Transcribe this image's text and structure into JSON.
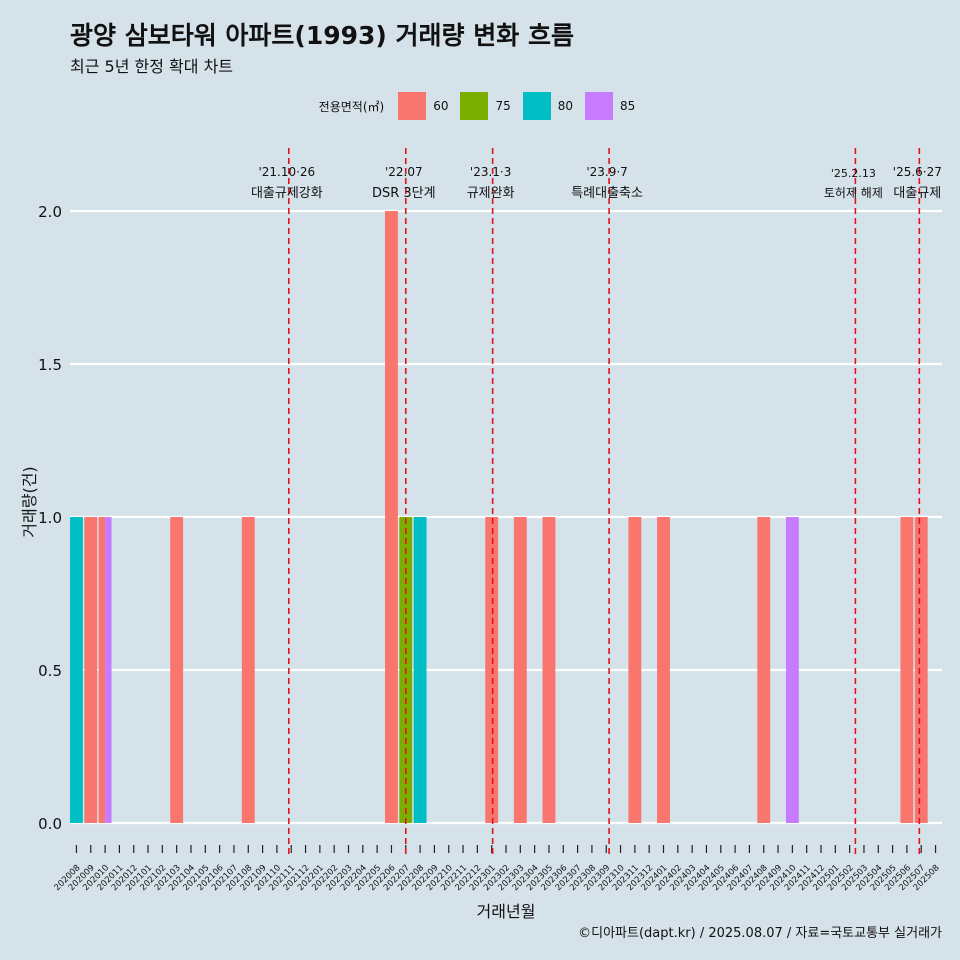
{
  "title": "광양 삼보타워 아파트(1993) 거래량 변화 흐름",
  "subtitle": "최근 5년 한정 확대 차트",
  "caption": "©디아파트(dapt.kr) / 2025.08.07 / 자료=국토교통부 실거래가",
  "legend": {
    "title": "전용면적(㎡)",
    "items": [
      {
        "label": "60",
        "color": "#f8766d"
      },
      {
        "label": "75",
        "color": "#7cae00"
      },
      {
        "label": "80",
        "color": "#00bfc4"
      },
      {
        "label": "85",
        "color": "#c77cff"
      }
    ]
  },
  "chart_data": {
    "type": "bar",
    "title": "광양 삼보타워 아파트(1993) 거래량 변화 흐름",
    "subtitle": "최근 5년 한정 확대 차트",
    "xlabel": "거래년월",
    "ylabel": "거래량(건)",
    "ylim": [
      0,
      2.2
    ],
    "yticks": [
      0.0,
      0.5,
      1.0,
      1.5,
      2.0
    ],
    "ytick_labels": [
      "0.0",
      "0.5",
      "1.0",
      "1.5",
      "2.0"
    ],
    "grid": true,
    "legend_position": "top",
    "categories": [
      "202008",
      "202009",
      "202010",
      "202011",
      "202012",
      "202101",
      "202102",
      "202103",
      "202104",
      "202105",
      "202106",
      "202107",
      "202108",
      "202109",
      "202110",
      "202111",
      "202112",
      "202201",
      "202202",
      "202203",
      "202204",
      "202205",
      "202206",
      "202207",
      "202208",
      "202209",
      "202210",
      "202211",
      "202212",
      "202301",
      "202302",
      "202303",
      "202304",
      "202305",
      "202306",
      "202307",
      "202308",
      "202309",
      "202310",
      "202311",
      "202312",
      "202401",
      "202402",
      "202403",
      "202404",
      "202405",
      "202406",
      "202407",
      "202408",
      "202409",
      "202410",
      "202411",
      "202412",
      "202501",
      "202502",
      "202503",
      "202504",
      "202505",
      "202506",
      "202507",
      "202508"
    ],
    "bars": [
      {
        "month": "202008",
        "segments": [
          {
            "area": "80",
            "value": 1
          }
        ]
      },
      {
        "month": "202009",
        "segments": [
          {
            "area": "60",
            "value": 1
          }
        ]
      },
      {
        "month": "202010",
        "segments": [
          {
            "area": "60",
            "value": 1
          },
          {
            "area": "85",
            "value": 1
          }
        ]
      },
      {
        "month": "202103",
        "segments": [
          {
            "area": "60",
            "value": 1
          }
        ]
      },
      {
        "month": "202108",
        "segments": [
          {
            "area": "60",
            "value": 1
          }
        ]
      },
      {
        "month": "202206",
        "segments": [
          {
            "area": "60",
            "value": 2
          }
        ]
      },
      {
        "month": "202207",
        "segments": [
          {
            "area": "75",
            "value": 1
          }
        ]
      },
      {
        "month": "202208",
        "segments": [
          {
            "area": "80",
            "value": 1
          }
        ]
      },
      {
        "month": "202301",
        "segments": [
          {
            "area": "60",
            "value": 1
          }
        ]
      },
      {
        "month": "202303",
        "segments": [
          {
            "area": "60",
            "value": 1
          }
        ]
      },
      {
        "month": "202305",
        "segments": [
          {
            "area": "60",
            "value": 1
          }
        ]
      },
      {
        "month": "202311",
        "segments": [
          {
            "area": "60",
            "value": 1
          }
        ]
      },
      {
        "month": "202401",
        "segments": [
          {
            "area": "60",
            "value": 1
          }
        ]
      },
      {
        "month": "202408",
        "segments": [
          {
            "area": "60",
            "value": 1
          }
        ]
      },
      {
        "month": "202410",
        "segments": [
          {
            "area": "85",
            "value": 1
          }
        ]
      },
      {
        "month": "202506",
        "segments": [
          {
            "area": "60",
            "value": 1
          }
        ]
      },
      {
        "month": "202507",
        "segments": [
          {
            "area": "60",
            "value": 1
          }
        ]
      }
    ],
    "events": [
      {
        "date": "2021-10-26",
        "label1": "'21.10·26",
        "label2": "대출규제강화"
      },
      {
        "date": "2022-07-01",
        "label1": "'22.07",
        "label2": "DSR 3단계"
      },
      {
        "date": "2023-01-03",
        "label1": "'23.1·3",
        "label2": "규제완화"
      },
      {
        "date": "2023-09-07",
        "label1": "'23.9·7",
        "label2": "특례대출축소"
      },
      {
        "date": "2025-02-13",
        "label1": "'25.2.13",
        "label2": "토허제 해제"
      },
      {
        "date": "2025-06-27",
        "label1": "'25.6·27",
        "label2": "대출규제"
      }
    ]
  }
}
